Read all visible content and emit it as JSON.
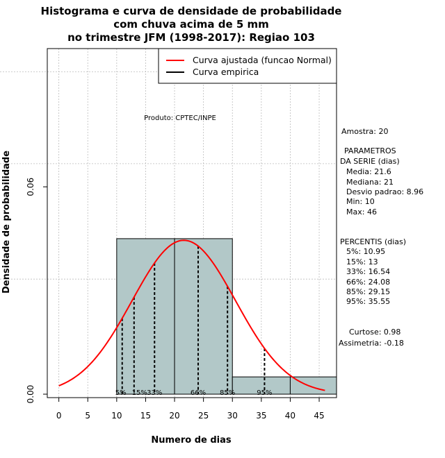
{
  "chart_data": {
    "type": "bar",
    "title": [
      "Histograma e curva de densidade de probabilidade",
      "com chuva acima de 5 mm",
      "no trimestre JFM (1998-2017): Regiao 103"
    ],
    "xlabel": "Numero de dias",
    "ylabel": "Densidade de probabilidade",
    "xlim": [
      -2,
      48
    ],
    "ylim": [
      -0.001,
      0.1
    ],
    "x_ticks": [
      0,
      5,
      10,
      15,
      20,
      25,
      30,
      35,
      40,
      45
    ],
    "y_ticks": [
      0.0,
      0.06
    ],
    "y_tick_labels": [
      "0.00",
      "0.06"
    ],
    "grid": true,
    "grid_y_extra": [
      0.0333,
      0.0667,
      0.0933
    ],
    "histogram": {
      "bins": [
        [
          10,
          20
        ],
        [
          20,
          30
        ],
        [
          30,
          40
        ],
        [
          40,
          50
        ]
      ],
      "density": [
        0.045,
        0.045,
        0.005,
        0.005
      ],
      "fill": "#b2c8c8"
    },
    "normal_fit": {
      "mean": 21.6,
      "sd": 8.96,
      "x_range": [
        0,
        46
      ],
      "color": "#ff0000"
    },
    "percentiles": [
      {
        "label": "5%",
        "value": 10.95
      },
      {
        "label": "15%",
        "value": 13.0
      },
      {
        "label": "33%",
        "value": 16.54
      },
      {
        "label": "66%",
        "value": 24.08
      },
      {
        "label": "85%",
        "value": 29.15
      },
      {
        "label": "95%",
        "value": 35.55
      }
    ],
    "legend": {
      "position": "top-right",
      "entries": [
        {
          "label": "Curva ajustada (funcao Normal)",
          "color": "#ff0000"
        },
        {
          "label": "Curva empirica",
          "color": "#000000"
        }
      ]
    },
    "annotation": "Produto: CPTEC/INPE",
    "side_info": {
      "amostra": "Amostra: 20",
      "param_title_1": "PARAMETROS",
      "param_title_2": "DA SERIE (dias)",
      "media": "Media: 21.6",
      "mediana": "Mediana: 21",
      "desvio": "Desvio padrao: 8.96",
      "min": "Min: 10",
      "max": "Max: 46",
      "perc_title": "PERCENTIS (dias)",
      "p5": "5%: 10.95",
      "p15": "15%: 13",
      "p33": "33%: 16.54",
      "p66": "66%: 24.08",
      "p85": "85%: 29.15",
      "p95": "95%: 35.55",
      "curtose": "Curtose: 0.98",
      "assimetria": "Assimetria: -0.18"
    }
  }
}
